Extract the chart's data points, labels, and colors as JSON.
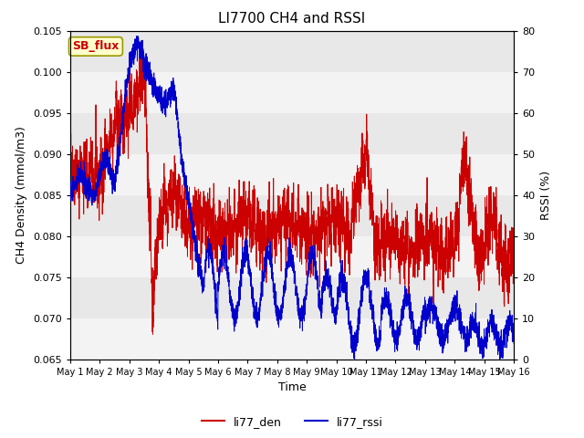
{
  "title": "LI7700 CH4 and RSSI",
  "xlabel": "Time",
  "ylabel_left": "CH4 Density (mmol/m3)",
  "ylabel_right": "RSSI (%)",
  "ylim_left": [
    0.065,
    0.105
  ],
  "ylim_right": [
    0,
    80
  ],
  "yticks_left": [
    0.065,
    0.07,
    0.075,
    0.08,
    0.085,
    0.09,
    0.095,
    0.1,
    0.105
  ],
  "yticks_right": [
    0,
    10,
    20,
    30,
    40,
    50,
    60,
    70,
    80
  ],
  "bg_color": "#e8e8e8",
  "fig_bg_color": "#ffffff",
  "line_color_den": "#cc0000",
  "line_color_rssi": "#0000cc",
  "legend_label_den": "li77_den",
  "legend_label_rssi": "li77_rssi",
  "annotation_text": "SB_flux",
  "annotation_bg": "#ffffcc",
  "annotation_border": "#999900",
  "title_fontsize": 11,
  "label_fontsize": 9,
  "tick_fontsize": 8,
  "num_points": 3600,
  "xtick_labels": [
    "May 1",
    "May 2",
    "May 3",
    "May 4",
    "May 5",
    "May 6",
    "May 7",
    "May 8",
    "May 9",
    "May 10",
    "May 11",
    "May 12",
    "May 13",
    "May 14",
    "May 15",
    "May 16"
  ]
}
